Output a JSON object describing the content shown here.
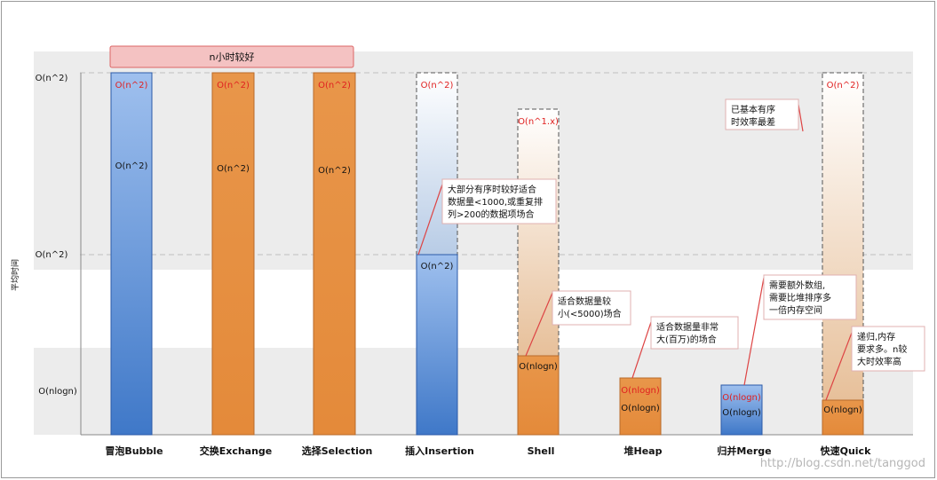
{
  "chart_data": {
    "type": "bar",
    "ylabel": "平均时间",
    "y_ticks": [
      "O(n^2)",
      "O(n^2)",
      "O(nlogn)"
    ],
    "top_banner": "n小时较好",
    "watermark": "http://blog.csdn.net/tanggod",
    "colors": {
      "blue": "#5b8fd6",
      "orange": "#e8984f",
      "red": "#e02020",
      "band": "#ececec"
    },
    "series": [
      {
        "name": "冒泡Bubble",
        "color": "blue",
        "style": "solid",
        "top_label": "O(n^2)",
        "mid_label": "O(n^2)",
        "bottom_label": ""
      },
      {
        "name": "交换Exchange",
        "color": "orange",
        "style": "solid",
        "top_label": "O(n^2)",
        "mid_label": "O(n^2)",
        "bottom_label": ""
      },
      {
        "name": "选择Selection",
        "color": "orange",
        "style": "solid",
        "top_label": "O(n^2)",
        "mid_label": "O(n^2)",
        "bottom_label": ""
      },
      {
        "name": "插入Insertion",
        "color": "blue",
        "style": "dashed-top",
        "top_label": "O(n^2)",
        "mid_label": "O(n^2)",
        "bottom_label": ""
      },
      {
        "name": "Shell",
        "color": "orange",
        "style": "dashed-top",
        "top_label": "O(n^1.x)",
        "mid_label": "O(nlogn)",
        "bottom_label": ""
      },
      {
        "name": "堆Heap",
        "color": "orange",
        "style": "solid-low",
        "top_label": "O(nlogn)",
        "mid_label": "O(nlogn)",
        "bottom_label": ""
      },
      {
        "name": "归并Merge",
        "color": "blue",
        "style": "solid-low",
        "top_label": "O(nlogn)",
        "mid_label": "O(nlogn)",
        "bottom_label": ""
      },
      {
        "name": "快速Quick",
        "color": "orange",
        "style": "dashed-top-low",
        "top_label": "O(n^2)",
        "mid_label": "O(nlogn)",
        "bottom_label": ""
      }
    ],
    "callouts": [
      {
        "text": [
          "大部分有序时较好适合",
          "数据量<1000,或重复排",
          "列>200的数据项场合"
        ]
      },
      {
        "text": [
          "适合数据量较",
          "小(<5000)场合"
        ]
      },
      {
        "text": [
          "适合数据量非常",
          "大(百万)的场合"
        ]
      },
      {
        "text": [
          "需要额外数组,",
          "需要比堆排序多",
          "一倍内存空间"
        ]
      },
      {
        "text": [
          "已基本有序",
          "时效率最差"
        ]
      },
      {
        "text": [
          "递归,内存",
          "要求多。n较",
          "大时效率高"
        ]
      }
    ]
  }
}
